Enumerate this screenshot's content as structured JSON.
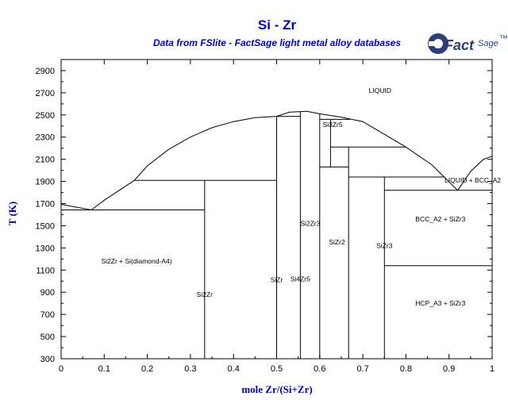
{
  "title": "Si - Zr",
  "subtitle": "Data from FSlite - FactSage light metal alloy databases",
  "logo": {
    "text": "Fact",
    "sup": "Sage",
    "mark": "™"
  },
  "colors": {
    "title": "#0000cc",
    "lines": "#000000",
    "logo": "#2a3f7a"
  },
  "chart_data": {
    "type": "phase-diagram",
    "xlabel": "mole Zr/(Si+Zr)",
    "ylabel": "T (K)",
    "xlim": [
      0,
      1
    ],
    "ylim": [
      300,
      3000
    ],
    "xticks": [
      "0",
      "0.1",
      "0.2",
      "0.3",
      "0.4",
      "0.5",
      "0.6",
      "0.7",
      "0.8",
      "0.9",
      "1"
    ],
    "yticks": [
      "300",
      "500",
      "700",
      "900",
      "1100",
      "1300",
      "1500",
      "1700",
      "1900",
      "2100",
      "2300",
      "2500",
      "2700",
      "2900"
    ],
    "curves": [
      {
        "name": "liquidus",
        "points": [
          [
            0,
            1693
          ],
          [
            0.07,
            1643
          ],
          [
            0.1,
            1730
          ],
          [
            0.17,
            1910
          ],
          [
            0.2,
            2040
          ],
          [
            0.25,
            2190
          ],
          [
            0.3,
            2300
          ],
          [
            0.35,
            2385
          ],
          [
            0.4,
            2440
          ],
          [
            0.45,
            2475
          ],
          [
            0.5,
            2487
          ],
          [
            0.53,
            2525
          ],
          [
            0.57,
            2532
          ],
          [
            0.6,
            2510
          ],
          [
            0.65,
            2480
          ],
          [
            0.7,
            2440
          ],
          [
            0.8,
            2210
          ],
          [
            0.86,
            2050
          ],
          [
            0.92,
            1820
          ],
          [
            0.95,
            1990
          ],
          [
            0.98,
            2100
          ],
          [
            1,
            2128
          ]
        ]
      },
      {
        "name": "eutectic-Si-Si2Zr",
        "points": [
          [
            0,
            1643
          ],
          [
            0.333,
            1643
          ]
        ]
      },
      {
        "name": "Si2Zr-solvus",
        "points": [
          [
            0.333,
            300
          ],
          [
            0.333,
            1910
          ]
        ]
      },
      {
        "name": "eutectic-Si2Zr-SiZr",
        "points": [
          [
            0.17,
            1910
          ],
          [
            0.5,
            1910
          ]
        ]
      },
      {
        "name": "SiZr-line",
        "points": [
          [
            0.5,
            300
          ],
          [
            0.5,
            2487
          ]
        ]
      },
      {
        "name": "peritectic-2487",
        "points": [
          [
            0.5,
            2487
          ],
          [
            0.555,
            2487
          ]
        ]
      },
      {
        "name": "Si4Zr5-line",
        "points": [
          [
            0.555,
            300
          ],
          [
            0.555,
            2532
          ]
        ]
      },
      {
        "name": "peritectic-2460",
        "points": [
          [
            0.6,
            2460
          ],
          [
            0.67,
            2460
          ]
        ]
      },
      {
        "name": "Si3Zr5-line",
        "points": [
          [
            0.6,
            300
          ],
          [
            0.6,
            2510
          ]
        ]
      },
      {
        "name": "Si3Zr5-low",
        "points": [
          [
            0.625,
            2030
          ],
          [
            0.625,
            2460
          ]
        ]
      },
      {
        "name": "peritectic-2210",
        "points": [
          [
            0.625,
            2210
          ],
          [
            0.8,
            2210
          ]
        ]
      },
      {
        "name": "SiZr2-top",
        "points": [
          [
            0.6,
            2030
          ],
          [
            0.667,
            2030
          ]
        ]
      },
      {
        "name": "SiZr2-line",
        "points": [
          [
            0.667,
            300
          ],
          [
            0.667,
            2210
          ]
        ]
      },
      {
        "name": "eutectic-1940",
        "points": [
          [
            0.667,
            1940
          ],
          [
            0.89,
            1940
          ]
        ]
      },
      {
        "name": "SiZr3-line",
        "points": [
          [
            0.75,
            300
          ],
          [
            0.75,
            1940
          ]
        ]
      },
      {
        "name": "eutectic-1820",
        "points": [
          [
            0.75,
            1820
          ],
          [
            1,
            1820
          ]
        ]
      },
      {
        "name": "eutectoid-1140",
        "points": [
          [
            0.75,
            1140
          ],
          [
            1,
            1140
          ]
        ]
      }
    ],
    "labels": [
      {
        "text": "LIQUID",
        "x": 0.74,
        "y": 2700
      },
      {
        "text": "Si3Zr5",
        "x": 0.63,
        "y": 2390
      },
      {
        "text": "LIQUID + BCC_A2",
        "x": 0.955,
        "y": 1890
      },
      {
        "text": "BCC_A2 + SiZr3",
        "x": 0.88,
        "y": 1540
      },
      {
        "text": "Si2Zr3",
        "x": 0.578,
        "y": 1500
      },
      {
        "text": "SiZr2",
        "x": 0.64,
        "y": 1330
      },
      {
        "text": "SiZr3",
        "x": 0.75,
        "y": 1300
      },
      {
        "text": "Si2Zr + Si(diamond-A4)",
        "x": 0.175,
        "y": 1160
      },
      {
        "text": "SiZr",
        "x": 0.5,
        "y": 990
      },
      {
        "text": "Si4Zr5",
        "x": 0.555,
        "y": 1000
      },
      {
        "text": "Si2Zr",
        "x": 0.333,
        "y": 860
      },
      {
        "text": "HCP_A3 + SiZr3",
        "x": 0.88,
        "y": 780
      }
    ]
  }
}
